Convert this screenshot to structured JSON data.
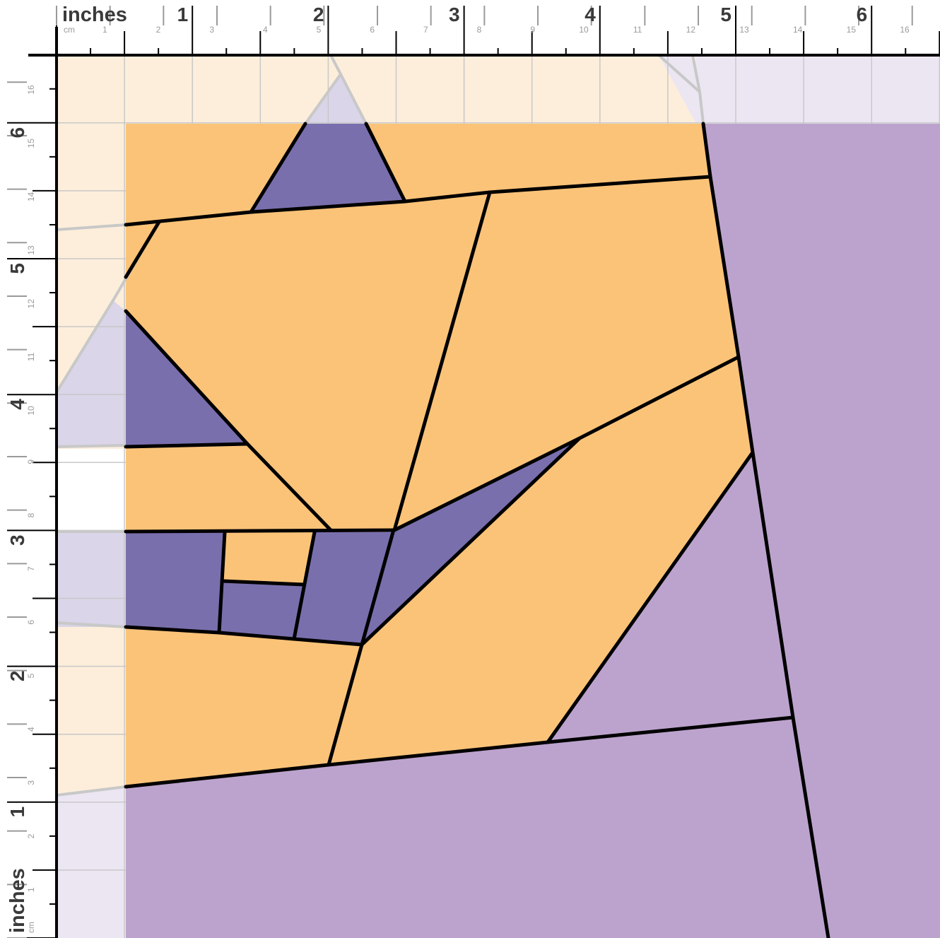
{
  "ruler": {
    "inch_unit_label": "inches",
    "cm_unit_label": "cm",
    "inch_numbers": [
      "1",
      "2",
      "3",
      "4",
      "5",
      "6"
    ],
    "cm_numbers": [
      "1",
      "2",
      "3",
      "4",
      "5",
      "6",
      "7",
      "8",
      "9",
      "10",
      "11",
      "12",
      "13",
      "14",
      "15",
      "16"
    ]
  },
  "colors": {
    "orange_fabric": "#fbc378",
    "dark_purple_fabric": "#7a6fad",
    "light_purple_fabric": "#bca3cd",
    "seam_allowance_orange": "#fdeedb",
    "seam_allowance_dark_purple": "#dad5e8",
    "seam_allowance_light_purple": "#ece6f3",
    "seam_line": "#000000",
    "allowance_line": "#c8c8c8",
    "grid_line": "#c8c8c8"
  }
}
